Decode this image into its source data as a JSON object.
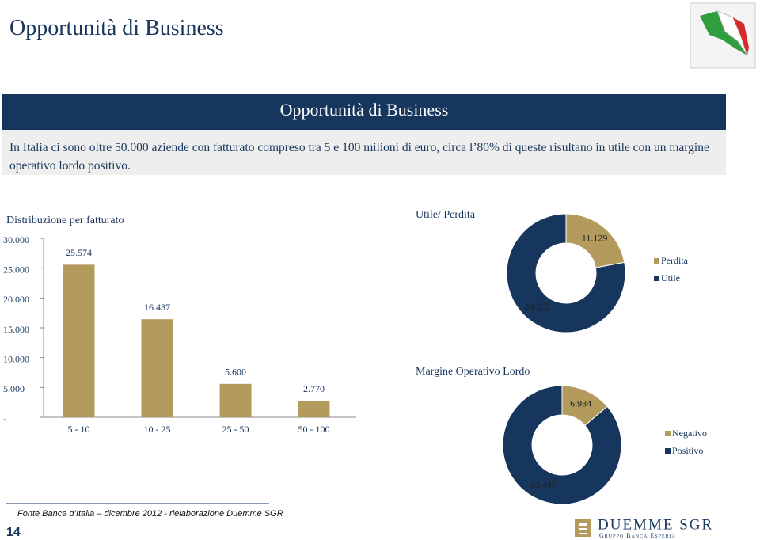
{
  "header": {
    "title": "Opportunità di Business"
  },
  "banner": {
    "title": "Opportunità di Business",
    "text": "In Italia ci sono oltre 50.000 aziende con fatturato compreso tra 5 e 100 milioni di euro, circa l’80% di queste risultano in utile con un margine operativo lordo positivo."
  },
  "chart_data": [
    {
      "type": "bar",
      "title": "Distribuzione per fatturato",
      "categories": [
        "5 - 10",
        "10 - 25",
        "25 - 50",
        "50 - 100"
      ],
      "values": [
        25574,
        16437,
        5600,
        2770
      ],
      "value_labels": [
        "25.574",
        "16.437",
        "5.600",
        "2.770"
      ],
      "color": "#b39b5e",
      "ylim": [
        0,
        30000
      ],
      "yticks": [
        {
          "value": 0,
          "label": "-"
        },
        {
          "value": 5000,
          "label": "5.000"
        },
        {
          "value": 10000,
          "label": "10.000"
        },
        {
          "value": 15000,
          "label": "15.000"
        },
        {
          "value": 20000,
          "label": "20.000"
        },
        {
          "value": 25000,
          "label": "25.000"
        },
        {
          "value": 30000,
          "label": "30.000"
        }
      ]
    },
    {
      "type": "donut",
      "title": "Utile/ Perdita",
      "categories": [
        "Perdita",
        "Utile"
      ],
      "values": [
        11129,
        39252
      ],
      "value_labels": [
        "11.129",
        "39.252"
      ],
      "colors": [
        "#b39b5e",
        "#17365d"
      ]
    },
    {
      "type": "donut",
      "title": "Margine Operativo Lordo",
      "categories": [
        "Negativo",
        "Positivo"
      ],
      "values": [
        6934,
        43447
      ],
      "value_labels": [
        "6.934",
        "43.447"
      ],
      "colors": [
        "#b39b5e",
        "#17365d"
      ]
    }
  ],
  "footer": {
    "source": "Fonte Banca d’Italia – dicembre 2012 - rielaborazione Duemme SGR",
    "page": "14",
    "logo": "DUEMME SGR",
    "logo_sub": "Gruppo Banca Esperia"
  }
}
